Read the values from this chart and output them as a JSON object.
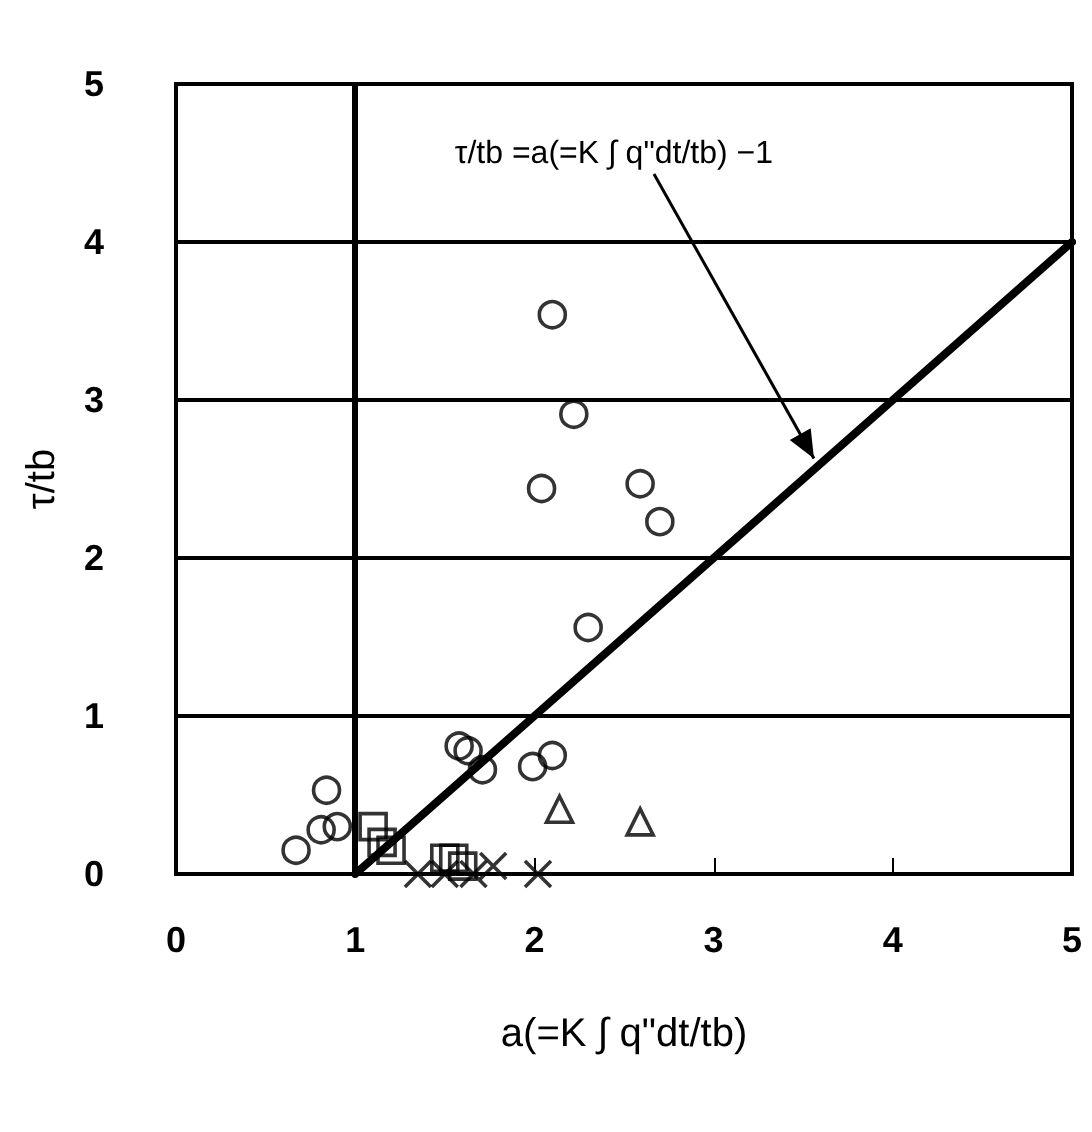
{
  "chart_data": {
    "type": "scatter",
    "xlabel": "a(=K ∫ q\"dt/tb)",
    "ylabel": "τ/tb",
    "xlim": [
      0,
      5
    ],
    "ylim": [
      0,
      5
    ],
    "xticks": [
      0,
      1,
      2,
      3,
      4,
      5
    ],
    "yticks": [
      0,
      1,
      2,
      3,
      4,
      5
    ],
    "grid": "y",
    "annotations": [
      {
        "text": "τ/tb =a(=K ∫ q\"dt/tb) −1",
        "x": 3.56,
        "y": 2.63
      }
    ],
    "ref_lines": [
      {
        "axis": "x",
        "value": 1,
        "color": "#000000"
      }
    ],
    "series": [
      {
        "marker": "circle",
        "color": "#000000",
        "x": [
          2.1,
          2.22,
          2.04,
          2.59,
          2.7,
          2.3,
          1.58,
          1.63,
          1.71,
          1.99,
          2.1,
          0.84,
          0.81,
          0.9,
          0.67
        ],
        "values": [
          3.54,
          2.91,
          2.44,
          2.47,
          2.23,
          1.56,
          0.81,
          0.78,
          0.66,
          0.68,
          0.75,
          0.53,
          0.28,
          0.3,
          0.15
        ]
      },
      {
        "marker": "triangle",
        "color": "#000000",
        "x": [
          2.14,
          2.59
        ],
        "values": [
          0.41,
          0.33
        ]
      },
      {
        "marker": "square",
        "color": "#000000",
        "x": [
          1.1,
          1.15,
          1.2,
          1.5,
          1.6,
          1.55
        ],
        "values": [
          0.3,
          0.2,
          0.15,
          0.1,
          0.05,
          0.1
        ]
      },
      {
        "marker": "cross",
        "color": "#000000",
        "x": [
          1.35,
          1.5,
          1.66,
          1.77,
          2.02
        ],
        "values": [
          0.0,
          0.0,
          0.0,
          0.05,
          0.0
        ]
      },
      {
        "type": "line",
        "line_style": "solid",
        "color": "#000000",
        "x": [
          1,
          5
        ],
        "values": [
          0,
          4
        ]
      }
    ]
  }
}
